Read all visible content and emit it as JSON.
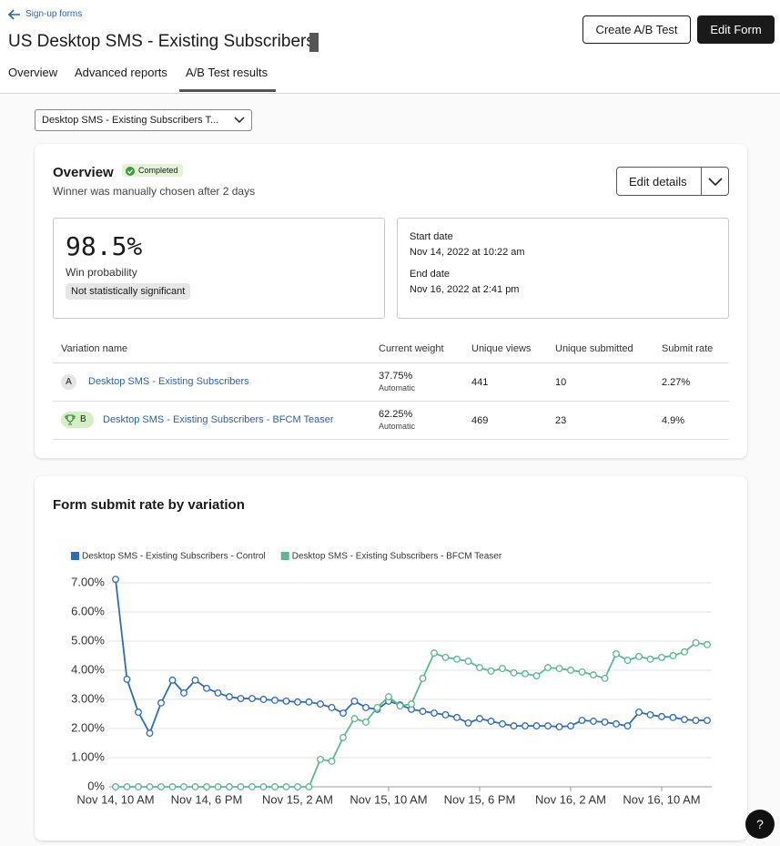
{
  "header": {
    "back_link": "Sign-up forms",
    "title": "US Desktop SMS - Existing Subscribers",
    "buttons": [
      "Create A/B Test",
      "Edit Form"
    ],
    "tabs": [
      "Overview",
      "Advanced reports",
      "A/B Test results"
    ]
  },
  "selector": "Desktop SMS - Existing Subscribers T...",
  "overview": {
    "title": "Overview",
    "status": "Completed",
    "subtitle": "Winner was manually chosen after 2 days",
    "edit_button": "Edit details",
    "win_probability": "98.5%",
    "win_label": "Win probability",
    "significance": "Not statistically significant",
    "start_label": "Start date",
    "start_date": "Nov 14, 2022 at 10:22 am",
    "end_label": "End date",
    "end_date": "Nov 16, 2022 at 2:41 pm"
  },
  "table": {
    "columns": [
      "Variation name",
      "Current weight",
      "Unique views",
      "Unique submitted",
      "Submit rate"
    ],
    "rows": [
      {
        "badge": "A",
        "name": "Desktop SMS - Existing Subscribers",
        "weight": "37.75%",
        "weight_mode": "Automatic",
        "views": "441",
        "submitted": "10",
        "rate": "2.27%"
      },
      {
        "badge": "B",
        "name": "Desktop SMS - Existing Subscribers - BFCM Teaser",
        "weight": "62.25%",
        "weight_mode": "Automatic",
        "views": "469",
        "submitted": "23",
        "rate": "4.9%"
      }
    ]
  },
  "chart_data": {
    "type": "line",
    "title": "Form submit rate by variation",
    "categories": [
      "Nov 14, 10 AM",
      null,
      null,
      null,
      null,
      null,
      null,
      null,
      "Nov 14, 6 PM",
      null,
      null,
      null,
      null,
      null,
      null,
      null,
      "Nov 15, 2 AM",
      null,
      null,
      null,
      null,
      null,
      null,
      null,
      "Nov 15, 10 AM",
      null,
      null,
      null,
      null,
      null,
      null,
      null,
      "Nov 15, 6 PM",
      null,
      null,
      null,
      null,
      null,
      null,
      null,
      "Nov 16, 2 AM",
      null,
      null,
      null,
      null,
      null,
      null,
      null,
      "Nov 16, 10 AM",
      null,
      null,
      null,
      null
    ],
    "series": [
      {
        "name": "Desktop SMS - Existing Subscribers - Control",
        "color": "#2f6db3",
        "values": [
          7.12,
          3.69,
          2.56,
          1.84,
          2.88,
          3.66,
          3.22,
          3.66,
          3.38,
          3.22,
          3.09,
          3.03,
          3.03,
          3.0,
          2.97,
          2.94,
          2.91,
          2.91,
          2.84,
          2.72,
          2.53,
          2.94,
          2.72,
          2.66,
          2.94,
          2.81,
          2.66,
          2.59,
          2.53,
          2.47,
          2.38,
          2.19,
          2.34,
          2.25,
          2.16,
          2.09,
          2.09,
          2.09,
          2.09,
          2.06,
          2.09,
          2.28,
          2.25,
          2.22,
          2.16,
          2.09,
          2.56,
          2.47,
          2.41,
          2.38,
          2.31,
          2.28,
          2.28
        ]
      },
      {
        "name": "Desktop SMS - Existing Subscribers - BFCM Teaser",
        "color": "#5bb88f",
        "values": [
          0,
          0,
          0,
          0,
          0,
          0,
          0,
          0,
          0,
          0,
          0,
          0,
          0,
          0,
          0,
          0,
          0,
          0,
          0.94,
          0.88,
          1.69,
          2.34,
          2.22,
          2.72,
          3.09,
          2.78,
          2.84,
          3.72,
          4.59,
          4.44,
          4.38,
          4.31,
          4.09,
          3.97,
          4.06,
          3.91,
          3.88,
          3.81,
          4.09,
          4.06,
          4.0,
          3.94,
          3.84,
          3.72,
          4.56,
          4.34,
          4.47,
          4.38,
          4.44,
          4.5,
          4.63,
          4.94,
          4.88
        ]
      }
    ],
    "ylim": [
      0,
      7.5
    ],
    "yticks": [
      {
        "value": 0,
        "label": "0%"
      },
      {
        "value": 1,
        "label": "1.00%"
      },
      {
        "value": 2,
        "label": "2.00%"
      },
      {
        "value": 3,
        "label": "3.00%"
      },
      {
        "value": 4,
        "label": "4.00%"
      },
      {
        "value": 5,
        "label": "5.00%"
      },
      {
        "value": 6,
        "label": "6.00%"
      },
      {
        "value": 7,
        "label": "7.00%"
      }
    ],
    "grid": true,
    "legend": "top-left"
  }
}
